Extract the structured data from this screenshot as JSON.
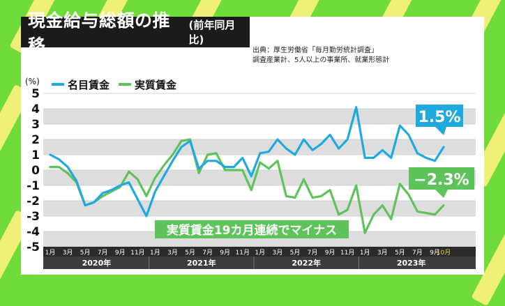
{
  "title": {
    "main": "現金給与総額の推移",
    "sub": "(前年同月比)"
  },
  "source": {
    "line1": "出典：厚生労働省「毎月勤労統計調査」",
    "line2": "調査産業計、5人以上の事業所、就業形態計"
  },
  "colors": {
    "nominal": "#1fa9de",
    "real": "#5ec35a",
    "band": "#dedede",
    "bg": "#6fdc3c"
  },
  "chart_data": {
    "type": "line",
    "unit_label": "(%)",
    "ylim": [
      -5,
      5
    ],
    "yticks": [
      "5",
      "4",
      "3",
      "2",
      "1",
      "0",
      "-1",
      "-2",
      "-3",
      "-4",
      "-5"
    ],
    "month_labels": [
      "1月",
      "3月",
      "5月",
      "7月",
      "9月",
      "11月",
      "1月",
      "3月",
      "5月",
      "7月",
      "9月",
      "11月",
      "1月",
      "3月",
      "5月",
      "7月",
      "9月",
      "11月",
      "1月",
      "3月",
      "5月",
      "7月",
      "9月",
      "10月"
    ],
    "years": [
      "2020年",
      "2021年",
      "2022年",
      "2023年"
    ],
    "legend": [
      "名目賃金",
      "実質賃金"
    ],
    "series": [
      {
        "name": "名目賃金",
        "values": [
          1.0,
          0.7,
          0.2,
          -0.7,
          -2.3,
          -2.1,
          -1.5,
          -1.3,
          -1.0,
          -0.8,
          -1.9,
          -3.0,
          -1.4,
          -0.4,
          0.6,
          1.5,
          1.9,
          0.1,
          0.6,
          0.6,
          0.2,
          0.2,
          0.8,
          -0.4,
          1.1,
          1.2,
          2.0,
          1.4,
          1.0,
          2.0,
          1.3,
          1.7,
          2.3,
          1.4,
          2.0,
          4.1,
          0.8,
          0.8,
          1.3,
          0.8,
          2.9,
          2.3,
          1.1,
          0.8,
          0.6,
          1.5
        ]
      },
      {
        "name": "実質賃金",
        "values": [
          0.2,
          0.2,
          -0.2,
          -0.8,
          -2.3,
          -2.1,
          -1.7,
          -1.4,
          -1.1,
          -0.1,
          -0.6,
          -1.7,
          -0.5,
          0.3,
          1.0,
          1.9,
          2.0,
          -0.2,
          1.0,
          1.1,
          0.0,
          0.0,
          0.0,
          -1.3,
          0.5,
          0.1,
          0.6,
          -1.7,
          -1.8,
          -0.6,
          -1.8,
          -1.7,
          -1.3,
          -2.9,
          -2.6,
          -1.0,
          -4.1,
          -2.9,
          -2.3,
          -3.2,
          -0.9,
          -1.6,
          -2.7,
          -2.8,
          -2.9,
          -2.3
        ]
      }
    ],
    "annotations": {
      "nominal_last": "1.5%",
      "real_last": "−2.3%",
      "callout": "実質賃金19カ月連続でマイナス"
    }
  }
}
